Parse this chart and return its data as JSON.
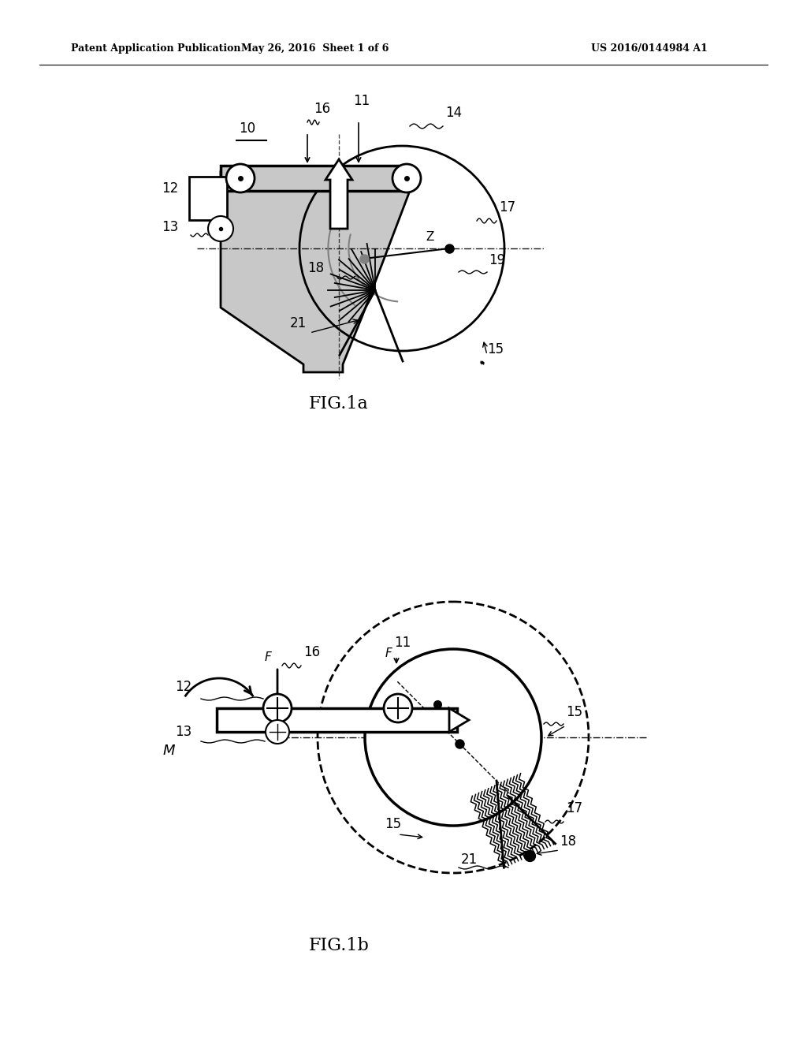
{
  "bg_color": "#ffffff",
  "line_color": "#000000",
  "gray_fill": "#c8c8c8",
  "header_left": "Patent Application Publication",
  "header_mid": "May 26, 2016  Sheet 1 of 6",
  "header_right": "US 2016/0144984 A1",
  "fig1a_label": "FIG.1a",
  "fig1b_label": "FIG.1b"
}
